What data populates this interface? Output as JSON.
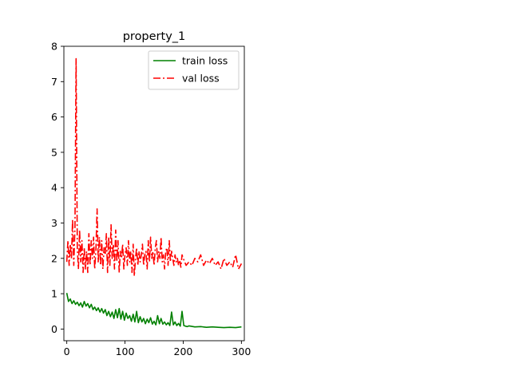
{
  "chart_data": {
    "type": "line",
    "title": "property_1",
    "xlabel": "",
    "ylabel": "",
    "xlim": [
      -5,
      305
    ],
    "ylim": [
      -0.33,
      8.0
    ],
    "xticks": [
      0,
      100,
      200,
      300
    ],
    "yticks": [
      0,
      1,
      2,
      3,
      4,
      5,
      6,
      7,
      8
    ],
    "grid": false,
    "legend_position": "upper right",
    "series": [
      {
        "name": "train loss",
        "color": "#008000",
        "style": "solid",
        "x": [
          0,
          3,
          6,
          9,
          12,
          15,
          18,
          21,
          24,
          27,
          30,
          33,
          36,
          39,
          42,
          45,
          48,
          51,
          54,
          57,
          60,
          63,
          66,
          69,
          72,
          75,
          78,
          81,
          84,
          87,
          90,
          93,
          96,
          99,
          102,
          105,
          108,
          111,
          114,
          117,
          120,
          123,
          126,
          129,
          132,
          135,
          138,
          141,
          144,
          147,
          150,
          153,
          156,
          159,
          162,
          165,
          168,
          171,
          174,
          177,
          180,
          183,
          186,
          189,
          192,
          195,
          198,
          201,
          204,
          207,
          210,
          220,
          230,
          240,
          250,
          260,
          270,
          280,
          290,
          300
        ],
        "values": [
          1.02,
          0.78,
          0.85,
          0.72,
          0.8,
          0.7,
          0.76,
          0.66,
          0.74,
          0.62,
          0.78,
          0.65,
          0.72,
          0.6,
          0.7,
          0.55,
          0.62,
          0.52,
          0.6,
          0.48,
          0.58,
          0.45,
          0.55,
          0.38,
          0.5,
          0.35,
          0.48,
          0.3,
          0.55,
          0.32,
          0.58,
          0.28,
          0.5,
          0.25,
          0.45,
          0.3,
          0.38,
          0.22,
          0.42,
          0.2,
          0.5,
          0.18,
          0.35,
          0.2,
          0.3,
          0.15,
          0.28,
          0.18,
          0.32,
          0.14,
          0.22,
          0.12,
          0.38,
          0.15,
          0.3,
          0.14,
          0.2,
          0.12,
          0.18,
          0.1,
          0.48,
          0.12,
          0.2,
          0.1,
          0.16,
          0.08,
          0.5,
          0.1,
          0.08,
          0.07,
          0.09,
          0.06,
          0.07,
          0.05,
          0.06,
          0.05,
          0.04,
          0.05,
          0.04,
          0.06
        ]
      },
      {
        "name": "val loss",
        "color": "#ff0000",
        "style": "dashdot",
        "x": [
          0,
          2,
          4,
          6,
          8,
          10,
          12,
          14,
          16,
          18,
          20,
          22,
          24,
          26,
          28,
          30,
          32,
          34,
          36,
          38,
          40,
          42,
          44,
          46,
          48,
          50,
          52,
          54,
          56,
          58,
          60,
          62,
          64,
          66,
          68,
          70,
          72,
          74,
          76,
          78,
          80,
          82,
          84,
          86,
          88,
          90,
          92,
          94,
          96,
          98,
          100,
          102,
          104,
          106,
          108,
          110,
          112,
          114,
          116,
          118,
          120,
          122,
          124,
          126,
          128,
          130,
          132,
          134,
          136,
          138,
          140,
          142,
          144,
          146,
          148,
          150,
          152,
          154,
          156,
          158,
          160,
          162,
          164,
          166,
          168,
          170,
          172,
          174,
          176,
          178,
          180,
          182,
          184,
          186,
          188,
          190,
          192,
          194,
          196,
          198,
          200,
          205,
          210,
          215,
          220,
          225,
          230,
          235,
          240,
          245,
          250,
          255,
          260,
          265,
          270,
          275,
          280,
          285,
          290,
          295,
          300
        ],
        "values": [
          1.9,
          2.5,
          1.8,
          2.4,
          2.0,
          3.1,
          1.8,
          2.9,
          7.65,
          2.3,
          1.7,
          2.8,
          1.9,
          2.5,
          1.6,
          2.3,
          1.7,
          2.2,
          1.6,
          2.7,
          1.8,
          2.5,
          2.0,
          2.6,
          1.7,
          2.2,
          3.4,
          1.9,
          2.6,
          1.8,
          2.5,
          1.7,
          2.3,
          2.1,
          2.7,
          1.6,
          2.6,
          1.8,
          2.95,
          2.0,
          2.4,
          1.7,
          2.8,
          1.9,
          2.5,
          1.6,
          2.2,
          2.0,
          2.4,
          1.7,
          2.1,
          2.3,
          1.8,
          2.5,
          1.9,
          2.2,
          1.6,
          2.4,
          1.5,
          2.0,
          2.3,
          1.8,
          2.2,
          1.9,
          2.1,
          2.4,
          1.8,
          2.1,
          2.2,
          1.7,
          2.5,
          1.9,
          2.6,
          2.0,
          2.2,
          1.8,
          2.3,
          2.5,
          1.9,
          2.2,
          2.0,
          2.6,
          1.9,
          2.1,
          1.7,
          2.2,
          2.3,
          1.8,
          2.5,
          1.9,
          2.2,
          2.0,
          1.8,
          2.1,
          1.9,
          2.0,
          1.8,
          1.95,
          1.75,
          2.1,
          2.0,
          1.8,
          1.9,
          1.8,
          2.0,
          1.9,
          2.1,
          1.8,
          1.95,
          1.85,
          2.0,
          1.8,
          1.9,
          1.7,
          2.0,
          1.8,
          1.9,
          1.75,
          2.1,
          1.7,
          1.85
        ]
      }
    ]
  }
}
